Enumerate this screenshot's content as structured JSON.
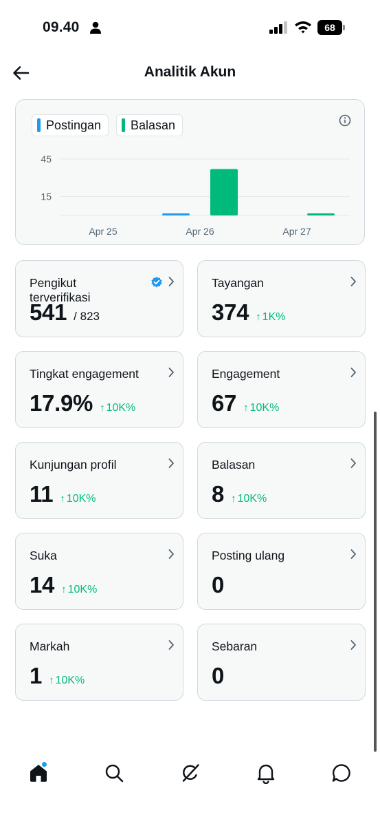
{
  "status_bar": {
    "time": "09.40",
    "battery": "68"
  },
  "header": {
    "title": "Analitik Akun"
  },
  "chart_data": {
    "type": "bar",
    "legend": [
      {
        "name": "Postingan",
        "color": "#1d9bf0"
      },
      {
        "name": "Balasan",
        "color": "#00ba7c"
      }
    ],
    "categories": [
      "Apr 25",
      "Apr 26",
      "Apr 27"
    ],
    "series": [
      {
        "name": "Postingan",
        "values": [
          0,
          1,
          0
        ]
      },
      {
        "name": "Balasan",
        "values": [
          0,
          37,
          1
        ]
      }
    ],
    "yticks": [
      "45",
      "15"
    ],
    "ylim": [
      0,
      45
    ]
  },
  "cards": [
    {
      "label": "Pengikut terverifikasi",
      "value": "541",
      "sub": "/ 823",
      "trend": "",
      "verified": true
    },
    {
      "label": "Tayangan",
      "value": "374",
      "sub": "",
      "trend": "1K%"
    },
    {
      "label": "Tingkat engagement",
      "value": "17.9%",
      "sub": "",
      "trend": "10K%"
    },
    {
      "label": "Engagement",
      "value": "67",
      "sub": "",
      "trend": "10K%"
    },
    {
      "label": "Kunjungan profil",
      "value": "11",
      "sub": "",
      "trend": "10K%"
    },
    {
      "label": "Balasan",
      "value": "8",
      "sub": "",
      "trend": "10K%"
    },
    {
      "label": "Suka",
      "value": "14",
      "sub": "",
      "trend": "10K%"
    },
    {
      "label": "Posting ulang",
      "value": "0",
      "sub": "",
      "trend": ""
    },
    {
      "label": "Markah",
      "value": "1",
      "sub": "",
      "trend": "10K%"
    },
    {
      "label": "Sebaran",
      "value": "0",
      "sub": "",
      "trend": ""
    }
  ],
  "nav": [
    "home-icon",
    "search-icon",
    "grok-icon",
    "notifications-icon",
    "messages-icon"
  ],
  "colors": {
    "accent": "#1d9bf0",
    "positive": "#00ba7c"
  }
}
